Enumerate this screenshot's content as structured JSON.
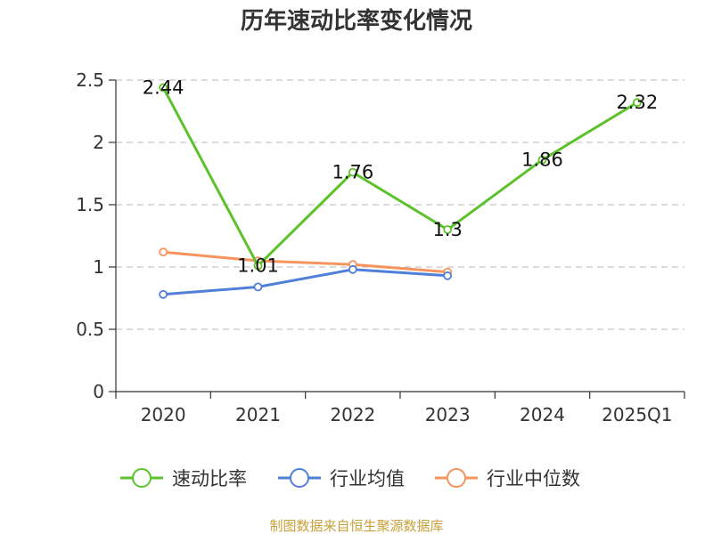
{
  "chart_data": {
    "type": "line",
    "title": "历年速动比率变化情况",
    "categories": [
      "2020",
      "2021",
      "2022",
      "2023",
      "2024",
      "2025Q1"
    ],
    "ylim": [
      0,
      2.5
    ],
    "yticks": [
      "0",
      "0.5",
      "1",
      "1.5",
      "2",
      "2.5"
    ],
    "grid": true,
    "legend_position": "bottom",
    "series": [
      {
        "name": "速动比率",
        "color": "#5cc22a",
        "values": [
          2.44,
          1.01,
          1.76,
          1.3,
          1.86,
          2.32
        ],
        "labels": [
          "2.44",
          "1.01",
          "1.76",
          "1.3",
          "1.86",
          "2.32"
        ]
      },
      {
        "name": "行业均值",
        "color": "#4f7fd9",
        "values": [
          0.78,
          0.84,
          0.98,
          0.93,
          null,
          null
        ]
      },
      {
        "name": "行业中位数",
        "color": "#f7935c",
        "values": [
          1.12,
          1.05,
          1.02,
          0.96,
          null,
          null
        ]
      }
    ],
    "source": "制图数据来自恒生聚源数据库",
    "source_color": "#c8a03a"
  }
}
